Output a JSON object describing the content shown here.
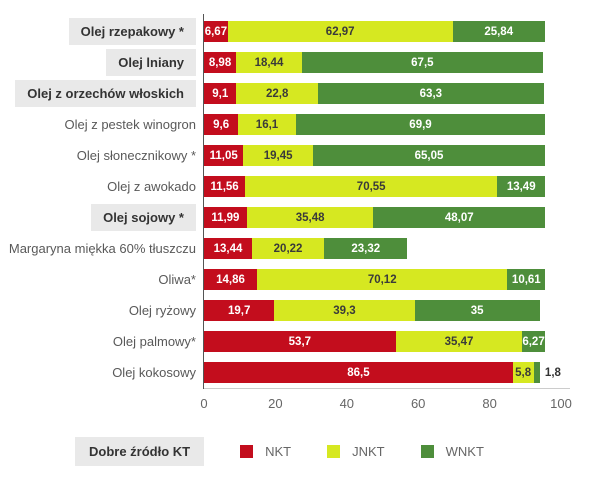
{
  "chart_data": {
    "type": "bar",
    "orientation": "horizontal",
    "stacked": true,
    "grid": false,
    "xlim": [
      0,
      100
    ],
    "x_ticks": [
      "0",
      "20",
      "40",
      "60",
      "80",
      "100"
    ],
    "series": [
      {
        "key": "NKT",
        "color": "#c30d1d",
        "label_color": "#ffffff"
      },
      {
        "key": "JNKT",
        "color": "#d6e821",
        "label_color": "#3a3a3a"
      },
      {
        "key": "WNKT",
        "color": "#4e8e3b",
        "label_color": "#ffffff"
      }
    ],
    "rows": [
      {
        "category": "Olej rzepakowy *",
        "good_source": true,
        "values": {
          "NKT": 6.67,
          "JNKT": 62.97,
          "WNKT": 25.84
        },
        "display": {
          "NKT": "6,67",
          "JNKT": "62,97",
          "WNKT": "25,84"
        }
      },
      {
        "category": "Olej lniany",
        "good_source": true,
        "values": {
          "NKT": 8.98,
          "JNKT": 18.44,
          "WNKT": 67.5
        },
        "display": {
          "NKT": "8,98",
          "JNKT": "18,44",
          "WNKT": "67,5"
        }
      },
      {
        "category": "Olej z orzechów włoskich",
        "good_source": true,
        "values": {
          "NKT": 9.1,
          "JNKT": 22.8,
          "WNKT": 63.3
        },
        "display": {
          "NKT": "9,1",
          "JNKT": "22,8",
          "WNKT": "63,3"
        }
      },
      {
        "category": "Olej z pestek winogron",
        "good_source": false,
        "values": {
          "NKT": 9.6,
          "JNKT": 16.1,
          "WNKT": 69.9
        },
        "display": {
          "NKT": "9,6",
          "JNKT": "16,1",
          "WNKT": "69,9"
        }
      },
      {
        "category": "Olej słonecznikowy *",
        "good_source": false,
        "values": {
          "NKT": 11.05,
          "JNKT": 19.45,
          "WNKT": 65.05
        },
        "display": {
          "NKT": "11,05",
          "JNKT": "19,45",
          "WNKT": "65,05"
        }
      },
      {
        "category": "Olej z awokado",
        "good_source": false,
        "values": {
          "NKT": 11.56,
          "JNKT": 70.55,
          "WNKT": 13.49
        },
        "display": {
          "NKT": "11,56",
          "JNKT": "70,55",
          "WNKT": "13,49"
        }
      },
      {
        "category": "Olej sojowy *",
        "good_source": true,
        "values": {
          "NKT": 11.99,
          "JNKT": 35.48,
          "WNKT": 48.07
        },
        "display": {
          "NKT": "11,99",
          "JNKT": "35,48",
          "WNKT": "48,07"
        }
      },
      {
        "category": "Margaryna miękka 60% tłuszczu",
        "good_source": false,
        "values": {
          "NKT": 13.44,
          "JNKT": 20.22,
          "WNKT": 23.32
        },
        "display": {
          "NKT": "13,44",
          "JNKT": "20,22",
          "WNKT": "23,32"
        }
      },
      {
        "category": "Oliwa*",
        "good_source": false,
        "values": {
          "NKT": 14.86,
          "JNKT": 70.12,
          "WNKT": 10.61
        },
        "display": {
          "NKT": "14,86",
          "JNKT": "70,12",
          "WNKT": "10,61"
        }
      },
      {
        "category": "Olej ryżowy",
        "good_source": false,
        "values": {
          "NKT": 19.7,
          "JNKT": 39.3,
          "WNKT": 35
        },
        "display": {
          "NKT": "19,7",
          "JNKT": "39,3",
          "WNKT": "35"
        }
      },
      {
        "category": "Olej palmowy*",
        "good_source": false,
        "values": {
          "NKT": 53.7,
          "JNKT": 35.47,
          "WNKT": 6.27
        },
        "display": {
          "NKT": "53,7",
          "JNKT": "35,47",
          "WNKT": "6,27"
        }
      },
      {
        "category": "Olej kokosowy",
        "good_source": false,
        "values": {
          "NKT": 86.5,
          "JNKT": 5.8,
          "WNKT": 1.8
        },
        "display": {
          "NKT": "86,5",
          "JNKT": "5,8",
          "WNKT": "1,8"
        }
      }
    ]
  },
  "legend": {
    "title": "Dobre źródło KT",
    "items": [
      {
        "label": "NKT",
        "color": "#c30d1d"
      },
      {
        "label": "JNKT",
        "color": "#d6e821"
      },
      {
        "label": "WNKT",
        "color": "#4e8e3b"
      }
    ]
  },
  "colors": {
    "highlight_box": "#e9e9e9",
    "axis_line": "#555555",
    "baseline": "#cccccc",
    "tick_text": "#666666",
    "category_text": "#595959",
    "highlight_text": "#333333"
  }
}
